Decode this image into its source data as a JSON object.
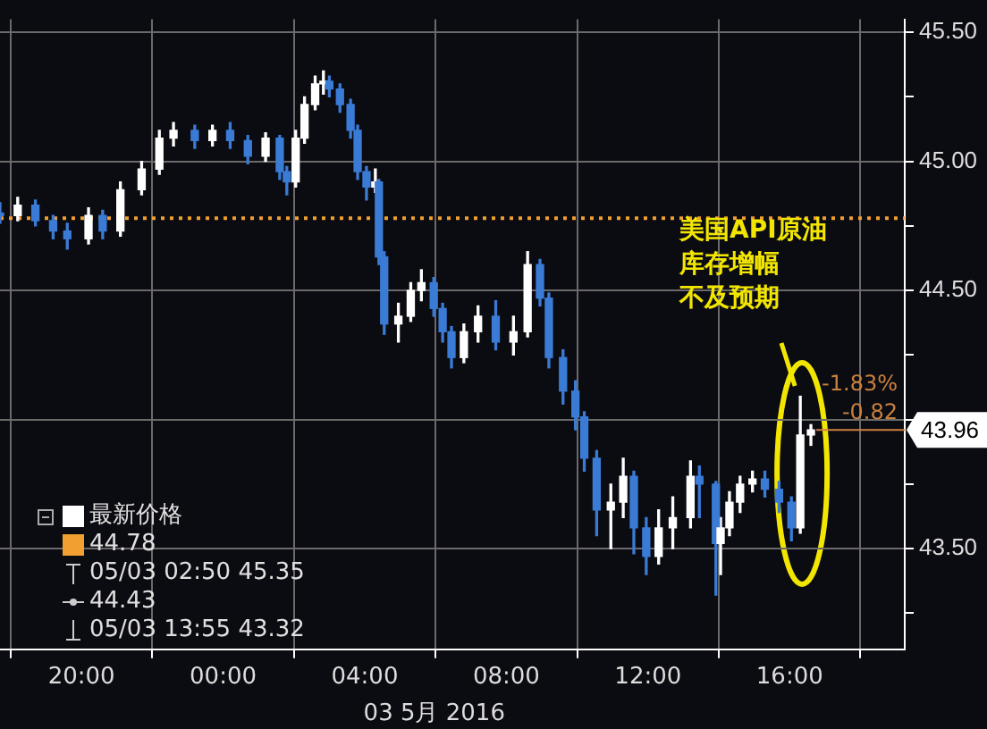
{
  "chart_data": {
    "type": "candlestick",
    "xlabel": "03 5月 2016",
    "series": [
      {
        "name": "最新价格",
        "color": "#ffffff",
        "x": [
          "2016-05-02T17:42",
          "2016-05-02T18:12",
          "2016-05-02T18:42",
          "2016-05-02T19:12",
          "2016-05-02T19:36",
          "2016-05-02T20:12",
          "2016-05-02T20:36",
          "2016-05-02T21:06",
          "2016-05-02T21:42",
          "2016-05-02T22:12",
          "2016-05-02T22:36",
          "2016-05-02T23:12",
          "2016-05-02T23:42",
          "2016-05-03T00:12",
          "2016-05-03T00:42",
          "2016-05-03T01:12",
          "2016-05-03T01:36",
          "2016-05-03T01:48",
          "2016-05-03T02:03",
          "2016-05-03T02:18",
          "2016-05-03T02:36",
          "2016-05-03T02:50",
          "2016-05-03T03:00",
          "2016-05-03T03:18",
          "2016-05-03T03:36",
          "2016-05-03T03:48",
          "2016-05-03T04:03",
          "2016-05-03T04:18",
          "2016-05-03T04:24",
          "2016-05-03T04:33",
          "2016-05-03T04:57",
          "2016-05-03T05:18",
          "2016-05-03T05:36",
          "2016-05-03T05:57",
          "2016-05-03T06:12",
          "2016-05-03T06:27",
          "2016-05-03T06:48",
          "2016-05-03T07:12",
          "2016-05-03T07:42",
          "2016-05-03T08:12",
          "2016-05-03T08:36",
          "2016-05-03T08:57",
          "2016-05-03T09:12",
          "2016-05-03T09:36",
          "2016-05-03T09:57",
          "2016-05-03T10:12",
          "2016-05-03T10:33",
          "2016-05-03T10:57",
          "2016-05-03T11:18",
          "2016-05-03T11:36",
          "2016-05-03T11:57",
          "2016-05-03T12:18",
          "2016-05-03T12:42",
          "2016-05-03T13:12",
          "2016-05-03T13:27",
          "2016-05-03T13:55",
          "2016-05-03T14:03",
          "2016-05-03T14:18",
          "2016-05-03T14:36",
          "2016-05-03T14:57",
          "2016-05-03T15:18",
          "2016-05-03T15:42",
          "2016-05-03T16:03",
          "2016-05-03T16:18",
          "2016-05-03T16:36"
        ],
        "ohlc": [
          [
            44.8,
            44.84,
            44.76,
            44.79
          ],
          [
            44.79,
            44.86,
            44.77,
            44.83
          ],
          [
            44.83,
            44.85,
            44.75,
            44.77
          ],
          [
            44.77,
            44.79,
            44.7,
            44.73
          ],
          [
            44.73,
            44.76,
            44.66,
            44.7
          ],
          [
            44.7,
            44.82,
            44.68,
            44.79
          ],
          [
            44.79,
            44.81,
            44.7,
            44.73
          ],
          [
            44.73,
            44.92,
            44.71,
            44.89
          ],
          [
            44.89,
            45.0,
            44.87,
            44.97
          ],
          [
            44.97,
            45.12,
            44.95,
            45.09
          ],
          [
            45.09,
            45.15,
            45.06,
            45.12
          ],
          [
            45.12,
            45.14,
            45.05,
            45.08
          ],
          [
            45.08,
            45.14,
            45.06,
            45.12
          ],
          [
            45.12,
            45.15,
            45.05,
            45.08
          ],
          [
            45.08,
            45.1,
            44.99,
            45.02
          ],
          [
            45.02,
            45.11,
            45.0,
            45.09
          ],
          [
            45.09,
            45.1,
            44.93,
            44.96
          ],
          [
            44.96,
            44.98,
            44.87,
            44.92
          ],
          [
            44.92,
            45.12,
            44.9,
            45.09
          ],
          [
            45.09,
            45.25,
            45.07,
            45.22
          ],
          [
            45.22,
            45.33,
            45.2,
            45.3
          ],
          [
            45.3,
            45.35,
            45.26,
            45.31
          ],
          [
            45.31,
            45.33,
            45.25,
            45.28
          ],
          [
            45.28,
            45.3,
            45.19,
            45.22
          ],
          [
            45.22,
            45.24,
            45.09,
            45.12
          ],
          [
            45.12,
            45.14,
            44.93,
            44.96
          ],
          [
            44.96,
            44.98,
            44.85,
            44.9
          ],
          [
            44.9,
            44.97,
            44.88,
            44.92
          ],
          [
            44.92,
            44.93,
            44.6,
            44.63
          ],
          [
            44.63,
            44.65,
            44.33,
            44.37
          ],
          [
            44.37,
            44.45,
            44.3,
            44.4
          ],
          [
            44.4,
            44.53,
            44.38,
            44.5
          ],
          [
            44.5,
            44.58,
            44.46,
            44.53
          ],
          [
            44.53,
            44.55,
            44.4,
            44.43
          ],
          [
            44.43,
            44.45,
            44.3,
            44.34
          ],
          [
            44.34,
            44.36,
            44.2,
            44.24
          ],
          [
            44.24,
            44.37,
            44.22,
            44.34
          ],
          [
            44.34,
            44.44,
            44.3,
            44.4
          ],
          [
            44.4,
            44.46,
            44.27,
            44.3
          ],
          [
            44.3,
            44.4,
            44.25,
            44.34
          ],
          [
            44.34,
            44.65,
            44.32,
            44.6
          ],
          [
            44.6,
            44.62,
            44.44,
            44.47
          ],
          [
            44.47,
            44.49,
            44.2,
            44.24
          ],
          [
            44.24,
            44.27,
            44.06,
            44.11
          ],
          [
            44.11,
            44.15,
            43.96,
            44.01
          ],
          [
            44.01,
            44.03,
            43.8,
            43.85
          ],
          [
            43.85,
            43.88,
            43.55,
            43.65
          ],
          [
            43.65,
            43.75,
            43.5,
            43.68
          ],
          [
            43.68,
            43.85,
            43.62,
            43.78
          ],
          [
            43.78,
            43.8,
            43.48,
            43.58
          ],
          [
            43.58,
            43.62,
            43.4,
            43.47
          ],
          [
            43.47,
            43.65,
            43.44,
            43.58
          ],
          [
            43.58,
            43.7,
            43.5,
            43.62
          ],
          [
            43.62,
            43.84,
            43.58,
            43.78
          ],
          [
            43.78,
            43.82,
            43.62,
            43.75
          ],
          [
            43.75,
            43.76,
            43.32,
            43.52
          ],
          [
            43.52,
            43.62,
            43.4,
            43.58
          ],
          [
            43.58,
            43.72,
            43.55,
            43.68
          ],
          [
            43.68,
            43.78,
            43.64,
            43.75
          ],
          [
            43.75,
            43.8,
            43.72,
            43.77
          ],
          [
            43.77,
            43.8,
            43.7,
            43.73
          ],
          [
            43.73,
            43.76,
            43.64,
            43.68
          ],
          [
            43.68,
            43.7,
            43.53,
            43.58
          ],
          [
            43.58,
            44.09,
            43.56,
            43.94
          ],
          [
            43.94,
            43.98,
            43.9,
            43.96
          ]
        ],
        "colors": [
          "#3a7bd5",
          "#ffffff",
          "#3a7bd5",
          "#3a7bd5",
          "#3a7bd5",
          "#ffffff",
          "#3a7bd5",
          "#ffffff",
          "#ffffff",
          "#ffffff",
          "#ffffff",
          "#3a7bd5",
          "#ffffff",
          "#3a7bd5",
          "#3a7bd5",
          "#ffffff",
          "#3a7bd5",
          "#3a7bd5",
          "#ffffff",
          "#ffffff",
          "#ffffff",
          "#ffffff",
          "#3a7bd5",
          "#3a7bd5",
          "#3a7bd5",
          "#3a7bd5",
          "#3a7bd5",
          "#ffffff",
          "#3a7bd5",
          "#3a7bd5",
          "#ffffff",
          "#ffffff",
          "#ffffff",
          "#3a7bd5",
          "#3a7bd5",
          "#3a7bd5",
          "#ffffff",
          "#ffffff",
          "#3a7bd5",
          "#ffffff",
          "#ffffff",
          "#3a7bd5",
          "#3a7bd5",
          "#3a7bd5",
          "#3a7bd5",
          "#3a7bd5",
          "#3a7bd5",
          "#ffffff",
          "#ffffff",
          "#3a7bd5",
          "#3a7bd5",
          "#ffffff",
          "#ffffff",
          "#ffffff",
          "#3a7bd5",
          "#3a7bd5",
          "#ffffff",
          "#ffffff",
          "#ffffff",
          "#ffffff",
          "#3a7bd5",
          "#3a7bd5",
          "#3a7bd5",
          "#ffffff",
          "#ffffff"
        ]
      }
    ],
    "xlim": [
      "2016-05-02T17:42",
      "2016-05-03T19:15"
    ],
    "xticks": [
      {
        "value": "2016-05-02T20:00",
        "label": "20:00"
      },
      {
        "value": "2016-05-03T00:00",
        "label": "00:00"
      },
      {
        "value": "2016-05-03T04:00",
        "label": "04:00"
      },
      {
        "value": "2016-05-03T08:00",
        "label": "08:00"
      },
      {
        "value": "2016-05-03T12:00",
        "label": "12:00"
      },
      {
        "value": "2016-05-03T16:00",
        "label": "16:00"
      }
    ],
    "ylim": [
      43.11,
      45.55
    ],
    "yticks": [
      {
        "value": 43.25,
        "label": null
      },
      {
        "value": 43.5,
        "label": "43.50"
      },
      {
        "value": 43.75,
        "label": null
      },
      {
        "value": 44,
        "label": null
      },
      {
        "value": 44.25,
        "label": null
      },
      {
        "value": 44.5,
        "label": "44.50"
      },
      {
        "value": 44.75,
        "label": null
      },
      {
        "value": 45,
        "label": "45.00"
      },
      {
        "value": 45.25,
        "label": null
      },
      {
        "value": 45.5,
        "label": "45.50"
      }
    ],
    "grid": true,
    "legend": "bottom left",
    "ref_lines": [
      {
        "axis": "y",
        "value": 44.78,
        "label": "44.78",
        "color": "#f0a030",
        "line_style": "dotted"
      }
    ],
    "annotations": [
      "美国API原油库存增幅不及预期",
      "-1.83%",
      "-0.82",
      {
        "text": "43.96",
        "x": "2016-05-03T16:36",
        "y": 43.96
      },
      "05/03 02:50 45.35",
      "44.43",
      "05/03 13:55 43.32"
    ]
  }
}
